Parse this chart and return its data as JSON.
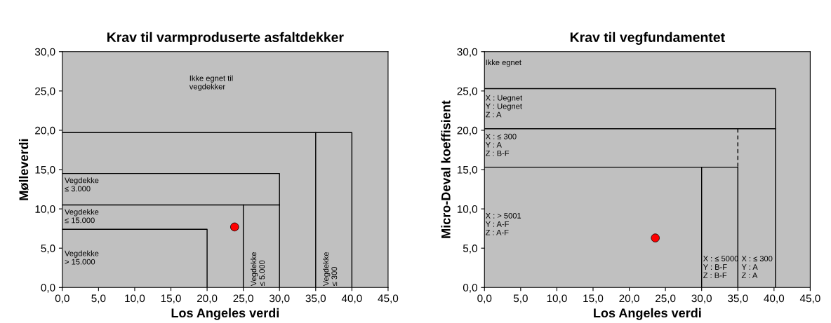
{
  "chart_data": [
    {
      "type": "scatter",
      "title": "Krav til varmproduserte asfaltdekker",
      "xlabel": "Los Angeles verdi",
      "ylabel": "Mølleverdi",
      "xlim": [
        0,
        45
      ],
      "ylim": [
        0,
        30
      ],
      "xticks": [
        {
          "value": 0,
          "label": "0,0"
        },
        {
          "value": 5,
          "label": "5,0"
        },
        {
          "value": 10,
          "label": "10,0"
        },
        {
          "value": 15,
          "label": "15,0"
        },
        {
          "value": 20,
          "label": "20,0"
        },
        {
          "value": 25,
          "label": "25,0"
        },
        {
          "value": 30,
          "label": "30,0"
        },
        {
          "value": 35,
          "label": "35,0"
        },
        {
          "value": 40,
          "label": "40,0"
        },
        {
          "value": 45,
          "label": "45,0"
        }
      ],
      "yticks": [
        {
          "value": 0,
          "label": "0,0"
        },
        {
          "value": 5,
          "label": "5,0"
        },
        {
          "value": 10,
          "label": "10,0"
        },
        {
          "value": 15,
          "label": "15,0"
        },
        {
          "value": 20,
          "label": "20,0"
        },
        {
          "value": 25,
          "label": "25,0"
        },
        {
          "value": 30,
          "label": "30,0"
        }
      ],
      "grid": false,
      "legend": false,
      "series": [
        {
          "type": "line",
          "color": "#000000",
          "line_style": "solid",
          "x": [
            0,
            20,
            20
          ],
          "values": [
            7.4,
            7.4,
            0
          ]
        },
        {
          "type": "line",
          "color": "#000000",
          "line_style": "solid",
          "x": [
            0,
            30
          ],
          "values": [
            10.5,
            10.5
          ]
        },
        {
          "type": "line",
          "color": "#000000",
          "line_style": "solid",
          "x": [
            25,
            25
          ],
          "values": [
            10.5,
            0
          ]
        },
        {
          "type": "line",
          "color": "#000000",
          "line_style": "solid",
          "x": [
            0,
            30,
            30
          ],
          "values": [
            14.5,
            14.5,
            0
          ]
        },
        {
          "type": "line",
          "color": "#000000",
          "line_style": "solid",
          "x": [
            0,
            40,
            40
          ],
          "values": [
            19.7,
            19.7,
            0
          ]
        },
        {
          "type": "line",
          "color": "#000000",
          "line_style": "solid",
          "x": [
            35,
            35
          ],
          "values": [
            19.7,
            0
          ]
        },
        {
          "color": "#ff0000",
          "marker": "circle",
          "x": [
            23.8
          ],
          "values": [
            7.7
          ]
        }
      ],
      "annotations": [
        "Ikke egnet til\nvegdekker",
        "Vegdekke\n≤ 3.000",
        "Vegdekke\n≤ 15.000",
        "Vegdekke\n> 15.000",
        "Vegdekke\n≤ 5.000",
        "Vegdekke\n≤ 300"
      ]
    },
    {
      "type": "scatter",
      "title": "Krav til vegfundamentet",
      "xlabel": "Los Angeles verdi",
      "ylabel": "Micro-Deval koeffisient",
      "xlim": [
        0,
        45
      ],
      "ylim": [
        0,
        30
      ],
      "xticks": [
        {
          "value": 0,
          "label": "0,0"
        },
        {
          "value": 5,
          "label": "5,0"
        },
        {
          "value": 10,
          "label": "10,0"
        },
        {
          "value": 15,
          "label": "15,0"
        },
        {
          "value": 20,
          "label": "20,0"
        },
        {
          "value": 25,
          "label": "25,0"
        },
        {
          "value": 30,
          "label": "30,0"
        },
        {
          "value": 35,
          "label": "35,0"
        },
        {
          "value": 40,
          "label": "40,0"
        },
        {
          "value": 45,
          "label": "45,0"
        }
      ],
      "yticks": [
        {
          "value": 0,
          "label": "0,0"
        },
        {
          "value": 5,
          "label": "5,0"
        },
        {
          "value": 10,
          "label": "10,0"
        },
        {
          "value": 15,
          "label": "15,0"
        },
        {
          "value": 20,
          "label": "20,0"
        },
        {
          "value": 25,
          "label": "25,0"
        },
        {
          "value": 30,
          "label": "30,0"
        }
      ],
      "grid": false,
      "legend": false,
      "series": [
        {
          "type": "line",
          "color": "#000000",
          "line_style": "solid",
          "x": [
            0,
            40.2,
            40.2
          ],
          "values": [
            25.3,
            25.3,
            0
          ]
        },
        {
          "type": "line",
          "color": "#000000",
          "line_style": "solid",
          "x": [
            0,
            40.2
          ],
          "values": [
            20.2,
            20.2
          ]
        },
        {
          "type": "line",
          "color": "#000000",
          "line_style": "dashed",
          "x": [
            35,
            35
          ],
          "values": [
            20.2,
            15.3
          ]
        },
        {
          "type": "line",
          "color": "#000000",
          "line_style": "solid",
          "x": [
            0,
            35,
            35
          ],
          "values": [
            15.3,
            15.3,
            0
          ]
        },
        {
          "type": "line",
          "color": "#000000",
          "line_style": "solid",
          "x": [
            30,
            30
          ],
          "values": [
            15.3,
            0
          ]
        },
        {
          "color": "#ff0000",
          "marker": "circle",
          "x": [
            23.6
          ],
          "values": [
            6.3
          ]
        }
      ],
      "annotations": [
        "Ikke egnet",
        "X : Uegnet\nY : Uegnet\nZ : A",
        "X : ≤ 300\nY : A\nZ : B-F",
        "X : > 5001\nY : A-F\nZ : A-F",
        "X : ≤ 5000\nY : B-F\nZ : B-F",
        "X : ≤ 300\nY : A\nZ : A"
      ]
    }
  ]
}
